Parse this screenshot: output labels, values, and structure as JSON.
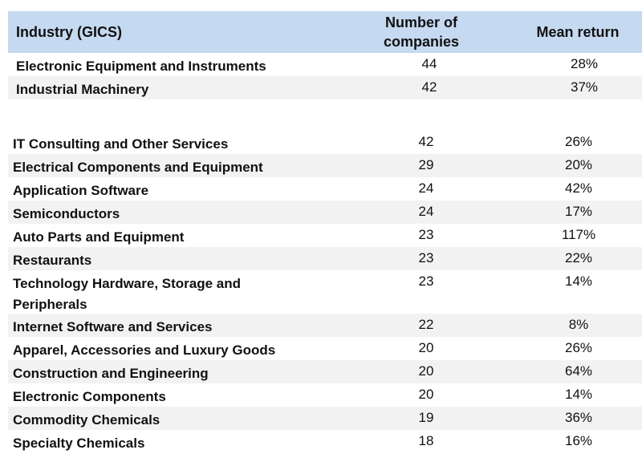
{
  "header": {
    "industry": "Industry (GICS)",
    "count": "Number of companies",
    "mean_return": "Mean return"
  },
  "rows": [
    {
      "industry": "Electronic Equipment and Instruments",
      "count": "44",
      "mean_return": "28%"
    },
    {
      "industry": "Industrial Machinery",
      "count": "42",
      "mean_return": "37%"
    },
    {
      "industry": "IT Consulting and Other Services",
      "count": "42",
      "mean_return": "26%"
    },
    {
      "industry": "Electrical Components and Equipment",
      "count": "29",
      "mean_return": "20%"
    },
    {
      "industry": "Application Software",
      "count": "24",
      "mean_return": "42%"
    },
    {
      "industry": "Semiconductors",
      "count": "24",
      "mean_return": "17%"
    },
    {
      "industry": "Auto Parts and Equipment",
      "count": "23",
      "mean_return": "117%"
    },
    {
      "industry": "Restaurants",
      "count": "23",
      "mean_return": "22%"
    },
    {
      "industry": "Technology Hardware, Storage and Peripherals",
      "count": "23",
      "mean_return": "14%"
    },
    {
      "industry": "Internet Software and Services",
      "count": "22",
      "mean_return": "8%"
    },
    {
      "industry": "Apparel, Accessories and Luxury Goods",
      "count": "20",
      "mean_return": "26%"
    },
    {
      "industry": "Construction and Engineering",
      "count": "20",
      "mean_return": "64%"
    },
    {
      "industry": "Electronic Components",
      "count": "20",
      "mean_return": "14%"
    },
    {
      "industry": "Commodity Chemicals",
      "count": "19",
      "mean_return": "36%"
    },
    {
      "industry": "Specialty Chemicals",
      "count": "18",
      "mean_return": "16%"
    }
  ]
}
